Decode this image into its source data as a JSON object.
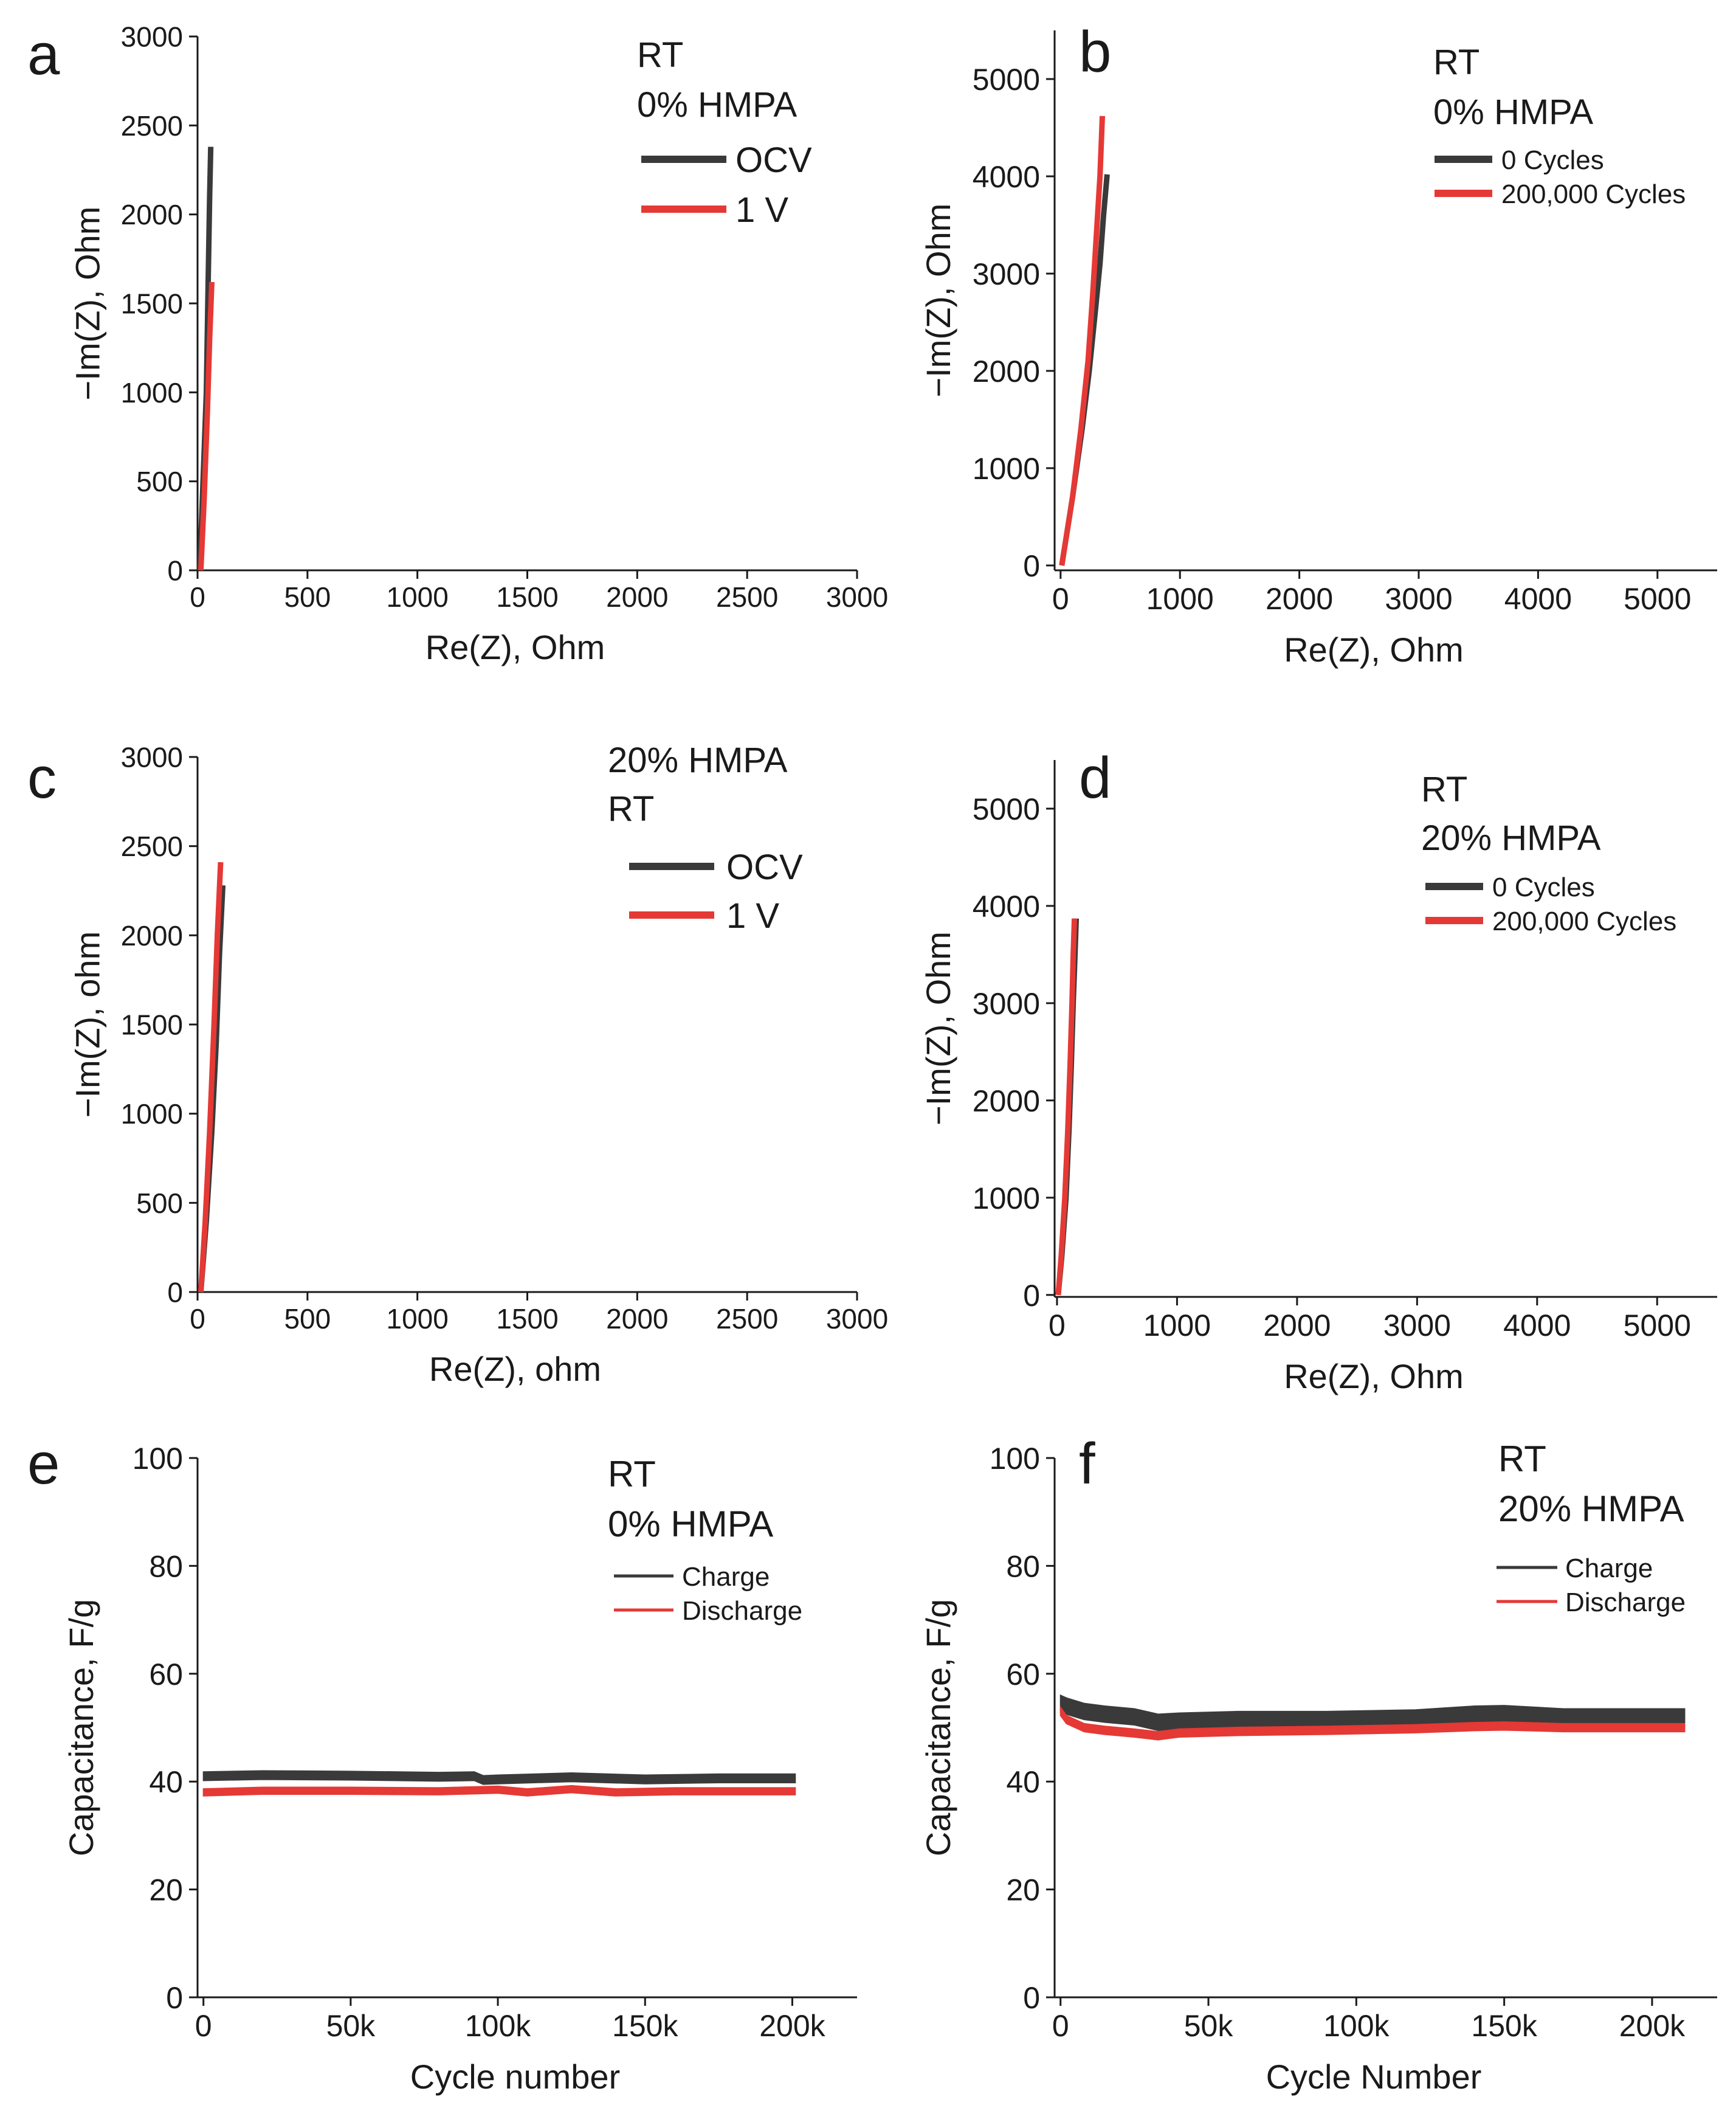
{
  "colors": {
    "black_series": "#3a3a3a",
    "red_series": "#e53935",
    "axis": "#1a1a1a",
    "background": "#ffffff"
  },
  "chart_data": [
    {
      "id": "a",
      "panel_label": "a",
      "type": "line",
      "xlabel": "Re(Z), Ohm",
      "ylabel": "−Im(Z), Ohm",
      "xlim": [
        0,
        3000
      ],
      "ylim": [
        0,
        3000
      ],
      "xticks": [
        0,
        500,
        1000,
        1500,
        2000,
        2500,
        3000
      ],
      "xtick_labels": [
        "0",
        "500",
        "1000",
        "1500",
        "2000",
        "2500",
        "3000"
      ],
      "yticks": [
        0,
        500,
        1000,
        1500,
        2000,
        2500,
        3000
      ],
      "ytick_labels": [
        "0",
        "500",
        "1000",
        "1500",
        "2000",
        "2500",
        "3000"
      ],
      "annotations": [
        "RT",
        "0% HMPA"
      ],
      "legend": [
        "OCV",
        "1 V"
      ],
      "series": [
        {
          "name": "OCV",
          "color": "#3a3a3a",
          "x": [
            10,
            25,
            40,
            48,
            55,
            60
          ],
          "y": [
            0,
            500,
            1000,
            1600,
            2100,
            2380
          ]
        },
        {
          "name": "1 V",
          "color": "#e53935",
          "x": [
            15,
            30,
            45,
            55,
            65
          ],
          "y": [
            0,
            400,
            900,
            1300,
            1620
          ]
        }
      ]
    },
    {
      "id": "b",
      "panel_label": "b",
      "type": "line",
      "xlabel": "Re(Z), Ohm",
      "ylabel": "−Im(Z), Ohm",
      "xlim": [
        -50,
        5500
      ],
      "ylim": [
        -50,
        5500
      ],
      "xticks": [
        0,
        1000,
        2000,
        3000,
        4000,
        5000
      ],
      "xtick_labels": [
        "0",
        "1000",
        "2000",
        "3000",
        "4000",
        "5000"
      ],
      "yticks": [
        0,
        1000,
        2000,
        3000,
        4000,
        5000
      ],
      "ytick_labels": [
        "0",
        "1000",
        "2000",
        "3000",
        "4000",
        "5000"
      ],
      "annotations": [
        "RT",
        "0% HMPA"
      ],
      "legend": [
        "0 Cycles",
        "200,000 Cycles"
      ],
      "series": [
        {
          "name": "0 Cycles",
          "color": "#3a3a3a",
          "x": [
            10,
            100,
            180,
            240,
            290,
            330,
            360,
            390
          ],
          "y": [
            0,
            700,
            1400,
            2000,
            2600,
            3100,
            3600,
            4020
          ]
        },
        {
          "name": "200,000 Cycles",
          "color": "#e53935",
          "x": [
            10,
            100,
            170,
            230,
            270,
            300,
            330,
            350
          ],
          "y": [
            0,
            700,
            1400,
            2100,
            2800,
            3400,
            4000,
            4620
          ]
        }
      ]
    },
    {
      "id": "c",
      "panel_label": "c",
      "type": "line",
      "xlabel": "Re(Z), ohm",
      "ylabel": "−Im(Z), ohm",
      "xlim": [
        0,
        3000
      ],
      "ylim": [
        0,
        3000
      ],
      "xticks": [
        0,
        500,
        1000,
        1500,
        2000,
        2500,
        3000
      ],
      "xtick_labels": [
        "0",
        "500",
        "1000",
        "1500",
        "2000",
        "2500",
        "3000"
      ],
      "yticks": [
        0,
        500,
        1000,
        1500,
        2000,
        2500,
        3000
      ],
      "ytick_labels": [
        "0",
        "500",
        "1000",
        "1500",
        "2000",
        "2500",
        "3000"
      ],
      "annotations": [
        "20% HMPA",
        "RT"
      ],
      "legend": [
        "OCV",
        "1 V"
      ],
      "series": [
        {
          "name": "OCV",
          "color": "#3a3a3a",
          "x": [
            15,
            40,
            65,
            85,
            100,
            115
          ],
          "y": [
            0,
            400,
            900,
            1400,
            1900,
            2280
          ]
        },
        {
          "name": "1 V",
          "color": "#e53935",
          "x": [
            15,
            35,
            55,
            75,
            90,
            105
          ],
          "y": [
            0,
            400,
            900,
            1500,
            2000,
            2410
          ]
        }
      ]
    },
    {
      "id": "d",
      "panel_label": "d",
      "type": "line",
      "xlabel": "Re(Z), Ohm",
      "ylabel": "−Im(Z), Ohm",
      "xlim": [
        -20,
        5500
      ],
      "ylim": [
        -20,
        5500
      ],
      "xticks": [
        0,
        1000,
        2000,
        3000,
        4000,
        5000
      ],
      "xtick_labels": [
        "0",
        "1000",
        "2000",
        "3000",
        "4000",
        "5000"
      ],
      "yticks": [
        0,
        1000,
        2000,
        3000,
        4000,
        5000
      ],
      "ytick_labels": [
        "0",
        "1000",
        "2000",
        "3000",
        "4000",
        "5000"
      ],
      "annotations": [
        "RT",
        "20% HMPA"
      ],
      "legend": [
        "0 Cycles",
        "200,000 Cycles"
      ],
      "series": [
        {
          "name": "0 Cycles",
          "color": "#3a3a3a",
          "x": [
            10,
            40,
            75,
            100,
            120,
            135,
            150,
            160
          ],
          "y": [
            0,
            400,
            1000,
            1700,
            2400,
            3000,
            3500,
            3870
          ]
        },
        {
          "name": "200,000 Cycles",
          "color": "#e53935",
          "x": [
            10,
            35,
            65,
            90,
            110,
            125,
            135,
            145
          ],
          "y": [
            0,
            400,
            1000,
            1700,
            2400,
            3000,
            3500,
            3870
          ]
        }
      ]
    },
    {
      "id": "e",
      "panel_label": "e",
      "type": "line",
      "xlabel": "Cycle number",
      "ylabel": "Capacitance, F/g",
      "xlim": [
        -2000,
        222000
      ],
      "ylim": [
        0,
        100
      ],
      "xticks": [
        0,
        50000,
        100000,
        150000,
        200000
      ],
      "xtick_labels": [
        "0",
        "50k",
        "100k",
        "150k",
        "200k"
      ],
      "yticks": [
        0,
        20,
        40,
        60,
        80,
        100
      ],
      "ytick_labels": [
        "0",
        "20",
        "40",
        "60",
        "80",
        "100"
      ],
      "annotations": [
        "RT",
        "0% HMPA"
      ],
      "legend": [
        "Charge",
        "Discharge"
      ],
      "series": [
        {
          "name": "Charge",
          "color": "#3a3a3a",
          "band": 1.6,
          "x": [
            0,
            20000,
            50000,
            80000,
            92000,
            95000,
            100000,
            125000,
            150000,
            175000,
            201000
          ],
          "y": [
            41,
            41.2,
            41.1,
            40.9,
            41,
            40.3,
            40.4,
            40.8,
            40.4,
            40.6,
            40.6
          ]
        },
        {
          "name": "Discharge",
          "color": "#e53935",
          "band": 1.3,
          "x": [
            0,
            20000,
            50000,
            80000,
            100000,
            110000,
            125000,
            140000,
            160000,
            180000,
            201000
          ],
          "y": [
            38,
            38.3,
            38.3,
            38.2,
            38.5,
            38,
            38.6,
            38,
            38.2,
            38.2,
            38.2
          ]
        }
      ]
    },
    {
      "id": "f",
      "panel_label": "f",
      "type": "line",
      "xlabel": "Cycle Number",
      "ylabel": "Capacitance, F/g",
      "xlim": [
        -2000,
        222000
      ],
      "ylim": [
        0,
        100
      ],
      "xticks": [
        0,
        50000,
        100000,
        150000,
        200000
      ],
      "xtick_labels": [
        "0",
        "50k",
        "100k",
        "150k",
        "200k"
      ],
      "yticks": [
        0,
        20,
        40,
        60,
        80,
        100
      ],
      "ytick_labels": [
        "0",
        "20",
        "40",
        "60",
        "80",
        "100"
      ],
      "annotations": [
        "RT",
        "20% HMPA"
      ],
      "legend": [
        "Charge",
        "Discharge"
      ],
      "series": [
        {
          "name": "Charge",
          "color": "#3a3a3a",
          "band": 3.0,
          "x": [
            0,
            2000,
            8000,
            15000,
            25000,
            33000,
            40000,
            60000,
            90000,
            120000,
            140000,
            150000,
            170000,
            190000,
            211000
          ],
          "y": [
            54.5,
            54,
            53,
            52.5,
            52,
            51,
            51.2,
            51.5,
            51.5,
            51.8,
            52.5,
            52.6,
            52,
            52,
            52
          ]
        },
        {
          "name": "Discharge",
          "color": "#e53935",
          "band": 1.5,
          "x": [
            0,
            2000,
            8000,
            15000,
            25000,
            33000,
            40000,
            60000,
            90000,
            120000,
            140000,
            150000,
            170000,
            190000,
            211000
          ],
          "y": [
            53,
            51.5,
            50,
            49.5,
            49,
            48.5,
            49,
            49.3,
            49.5,
            49.8,
            50.2,
            50.3,
            50,
            50,
            50
          ]
        }
      ]
    }
  ]
}
